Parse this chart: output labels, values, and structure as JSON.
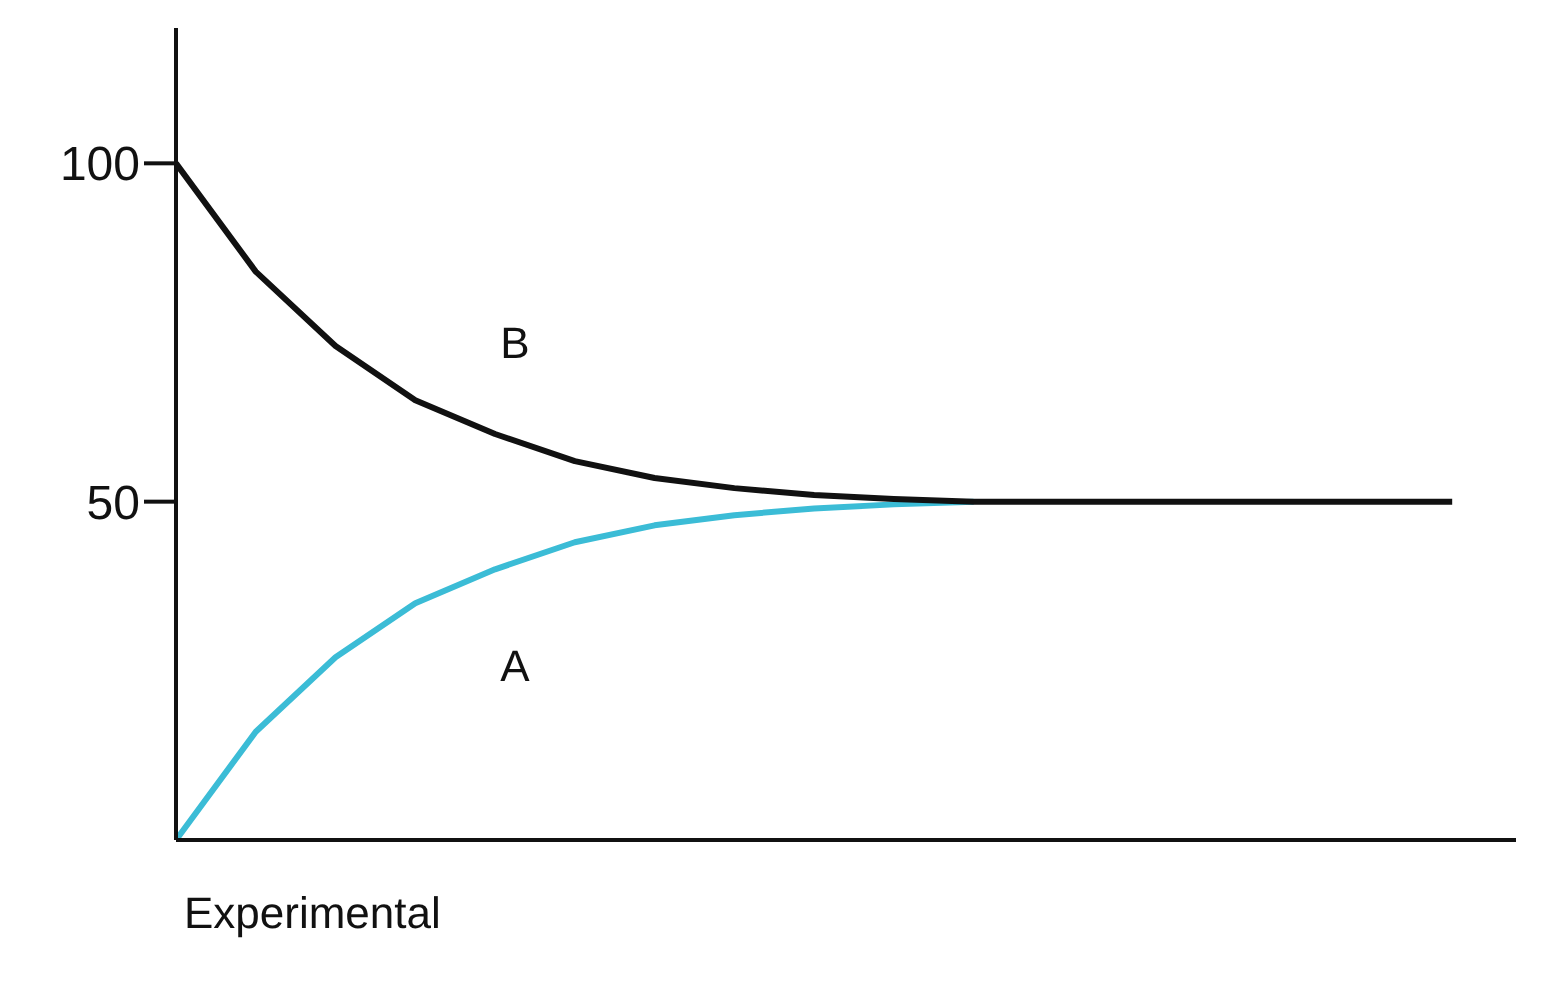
{
  "chart_data": {
    "type": "line",
    "xlabel": "Experimental",
    "categories": [
      null,
      null,
      null,
      null,
      null,
      null,
      null,
      null,
      null,
      null,
      null,
      null,
      null,
      null,
      null,
      null,
      null
    ],
    "series": [
      {
        "name": "A",
        "color": "#3bbcd6",
        "values": [
          0,
          16,
          27,
          35,
          40,
          44,
          46.5,
          48,
          49,
          49.6,
          50,
          null,
          null,
          null,
          null,
          null,
          null
        ]
      },
      {
        "name": "B",
        "color": "#111111",
        "values": [
          100,
          84,
          73,
          65,
          60,
          56,
          53.5,
          52,
          51,
          50.4,
          50,
          50,
          50,
          50,
          50,
          50,
          50
        ]
      }
    ],
    "ylim": [
      0,
      120
    ],
    "yticks": [
      50,
      100
    ],
    "tick_labels": "y",
    "grid": false,
    "legend": false,
    "marker": "none",
    "line_style": "solid"
  }
}
